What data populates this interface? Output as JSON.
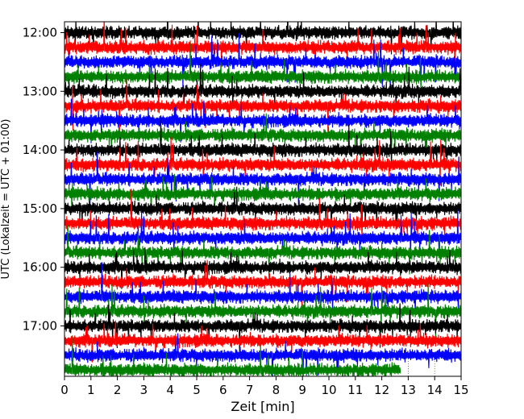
{
  "chart_data": {
    "type": "line",
    "title": "",
    "xlabel": "Zeit  [min]",
    "ylabel": "UTC (Lokalzeit = UTC + 01:00)",
    "xlim": [
      0,
      15
    ],
    "x_ticks": [
      "0",
      "1",
      "2",
      "3",
      "4",
      "5",
      "6",
      "7",
      "8",
      "9",
      "10",
      "11",
      "12",
      "13",
      "14",
      "15"
    ],
    "y_ticks": [
      "12:00",
      "13:00",
      "14:00",
      "15:00",
      "16:00",
      "17:00"
    ],
    "trace_interval_min": 15,
    "start_time": "12:00",
    "end_time": "17:45",
    "last_trace_end_min": 12.7,
    "grid": false,
    "legend": "none",
    "series_colors": [
      "#000000",
      "#ff0000",
      "#0000ff",
      "#008000"
    ],
    "traces": [
      {
        "start": "12:00",
        "color": "#000000"
      },
      {
        "start": "12:15",
        "color": "#ff0000"
      },
      {
        "start": "12:30",
        "color": "#0000ff"
      },
      {
        "start": "12:45",
        "color": "#008000"
      },
      {
        "start": "13:00",
        "color": "#000000"
      },
      {
        "start": "13:15",
        "color": "#ff0000"
      },
      {
        "start": "13:30",
        "color": "#0000ff"
      },
      {
        "start": "13:45",
        "color": "#008000"
      },
      {
        "start": "14:00",
        "color": "#000000"
      },
      {
        "start": "14:15",
        "color": "#ff0000"
      },
      {
        "start": "14:30",
        "color": "#0000ff"
      },
      {
        "start": "14:45",
        "color": "#008000"
      },
      {
        "start": "15:00",
        "color": "#000000"
      },
      {
        "start": "15:15",
        "color": "#ff0000"
      },
      {
        "start": "15:30",
        "color": "#0000ff"
      },
      {
        "start": "15:45",
        "color": "#008000"
      },
      {
        "start": "16:00",
        "color": "#000000"
      },
      {
        "start": "16:15",
        "color": "#ff0000"
      },
      {
        "start": "16:30",
        "color": "#0000ff"
      },
      {
        "start": "16:45",
        "color": "#008000"
      },
      {
        "start": "17:00",
        "color": "#000000"
      },
      {
        "start": "17:15",
        "color": "#ff0000"
      },
      {
        "start": "17:30",
        "color": "#0000ff"
      },
      {
        "start": "17:45",
        "color": "#008000"
      }
    ]
  }
}
